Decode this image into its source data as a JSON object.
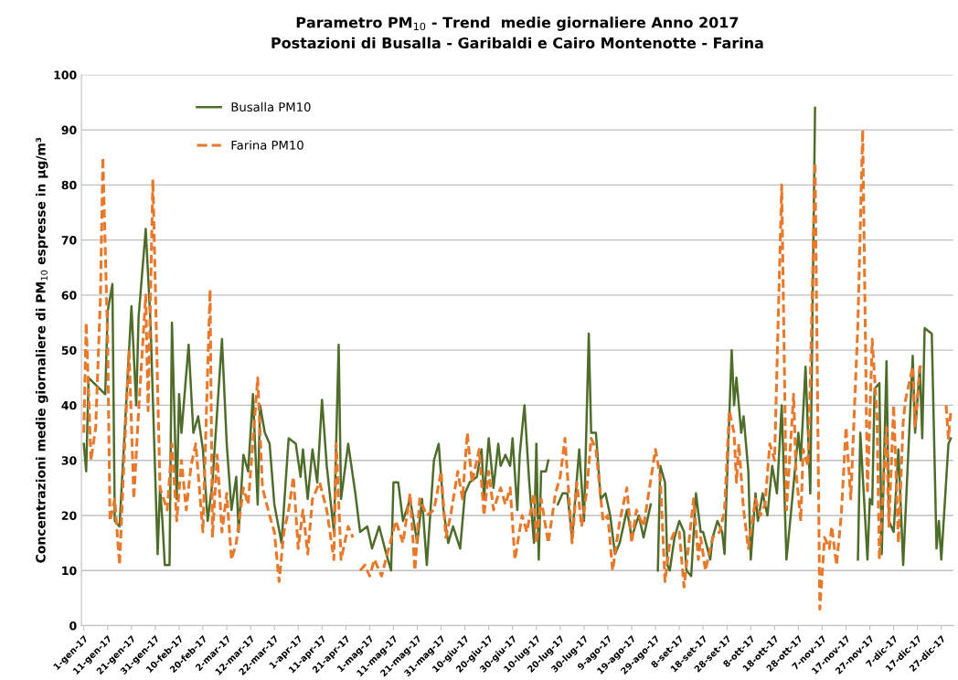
{
  "chart_data": {
    "type": "line",
    "title": "Parametro PM$_{10}$ - Trend  medie giornaliere Anno 2017",
    "subtitle": "Postazioni di Busalla - Garibaldi e Cairo Montenotte - Farina",
    "ylabel": "Concentrazioni medie giornaliere di PM$_{10}$ espresse in µg/m³",
    "xlim": [
      "2016-12-31",
      "2018-01-01"
    ],
    "ylim": [
      0,
      100
    ],
    "yticks": [
      0,
      10,
      20,
      30,
      40,
      50,
      60,
      70,
      80,
      90,
      100
    ],
    "xticks": [
      {
        "value": "2017-01-01",
        "label": "1-gen-17"
      },
      {
        "value": "2017-01-11",
        "label": "11-gen-17"
      },
      {
        "value": "2017-01-21",
        "label": "21-gen-17"
      },
      {
        "value": "2017-01-31",
        "label": "31-gen-17"
      },
      {
        "value": "2017-02-10",
        "label": "10-feb-17"
      },
      {
        "value": "2017-02-20",
        "label": "20-feb-17"
      },
      {
        "value": "2017-03-02",
        "label": "2-mar-17"
      },
      {
        "value": "2017-03-12",
        "label": "12-mar-17"
      },
      {
        "value": "2017-03-22",
        "label": "22-mar-17"
      },
      {
        "value": "2017-04-01",
        "label": "1-apr-17"
      },
      {
        "value": "2017-04-11",
        "label": "11-apr-17"
      },
      {
        "value": "2017-04-21",
        "label": "21-apr-17"
      },
      {
        "value": "2017-05-01",
        "label": "1-mag-17"
      },
      {
        "value": "2017-05-11",
        "label": "11-mag-17"
      },
      {
        "value": "2017-05-21",
        "label": "21-mag-17"
      },
      {
        "value": "2017-05-31",
        "label": "31-mag-17"
      },
      {
        "value": "2017-06-10",
        "label": "10-giu-17"
      },
      {
        "value": "2017-06-20",
        "label": "20-giu-17"
      },
      {
        "value": "2017-06-30",
        "label": "30-giu-17"
      },
      {
        "value": "2017-07-10",
        "label": "10-lug-17"
      },
      {
        "value": "2017-07-20",
        "label": "20-lug-17"
      },
      {
        "value": "2017-07-30",
        "label": "30-lug-17"
      },
      {
        "value": "2017-08-09",
        "label": "9-ago-17"
      },
      {
        "value": "2017-08-19",
        "label": "19-ago-17"
      },
      {
        "value": "2017-08-29",
        "label": "29-ago-17"
      },
      {
        "value": "2017-09-08",
        "label": "8-set-17"
      },
      {
        "value": "2017-09-18",
        "label": "18-set-17"
      },
      {
        "value": "2017-09-28",
        "label": "28-set-17"
      },
      {
        "value": "2017-10-08",
        "label": "8-ott-17"
      },
      {
        "value": "2017-10-18",
        "label": "18-ott-17"
      },
      {
        "value": "2017-10-28",
        "label": "28-ott-17"
      },
      {
        "value": "2017-11-07",
        "label": "7-nov-17"
      },
      {
        "value": "2017-11-17",
        "label": "17-nov-17"
      },
      {
        "value": "2017-11-27",
        "label": "27-nov-17"
      },
      {
        "value": "2017-12-07",
        "label": "7-dic-17"
      },
      {
        "value": "2017-12-17",
        "label": "17-dic-17"
      },
      {
        "value": "2017-12-27",
        "label": "27-dic-17"
      }
    ],
    "grid": "y",
    "legend": "top left",
    "marker": "none",
    "series": [
      {
        "name": "Busalla PM10",
        "color": "#4f6d2a",
        "line_style": "solid",
        "x": [
          "2017-01-01",
          "2017-01-02",
          "2017-01-03",
          "2017-01-10",
          "2017-01-11",
          "2017-01-13",
          "2017-01-14",
          "2017-01-16",
          "2017-01-21",
          "2017-01-23",
          "2017-01-24",
          "2017-01-27",
          "2017-01-29",
          "2017-02-01",
          "2017-02-02",
          "2017-02-03",
          "2017-02-04",
          "2017-02-06",
          "2017-02-07",
          "2017-02-09",
          "2017-02-10",
          "2017-02-11",
          "2017-02-14",
          "2017-02-16",
          "2017-02-18",
          "2017-02-20",
          "2017-02-22",
          "2017-02-24",
          "2017-02-28",
          "2017-03-02",
          "2017-03-04",
          "2017-03-06",
          "2017-03-07",
          "2017-03-09",
          "2017-03-11",
          "2017-03-13",
          "2017-03-15",
          "2017-03-16",
          "2017-03-18",
          "2017-03-20",
          "2017-03-22",
          "2017-03-25",
          "2017-03-28",
          "2017-03-31",
          "2017-04-02",
          "2017-04-03",
          "2017-04-05",
          "2017-04-07",
          "2017-04-09",
          "2017-04-11",
          "2017-04-13",
          "2017-04-16",
          "2017-04-18",
          "2017-04-19",
          "2017-04-22",
          "2017-04-25",
          "2017-04-27",
          "2017-04-30",
          "2017-05-02",
          "2017-05-05",
          "2017-05-08",
          "2017-05-10",
          "2017-05-11",
          "2017-05-13",
          "2017-05-15",
          "2017-05-18",
          "2017-05-21",
          "2017-05-23",
          "2017-05-25",
          "2017-05-28",
          "2017-05-30",
          "2017-06-01",
          "2017-06-03",
          "2017-06-05",
          "2017-06-08",
          "2017-06-10",
          "2017-06-12",
          "2017-06-15",
          "2017-06-17",
          "2017-06-18",
          "2017-06-20",
          "2017-06-22",
          "2017-06-24",
          "2017-06-25",
          "2017-06-27",
          "2017-06-29",
          "2017-06-30",
          "2017-07-02",
          "2017-07-03",
          "2017-07-05",
          "2017-07-07",
          "2017-07-09",
          "2017-07-10",
          "2017-07-11",
          "2017-07-12",
          "2017-07-14",
          "2017-07-15",
          "2017-07-17",
          "2017-07-19",
          "2017-07-21",
          "2017-07-23",
          "2017-07-25",
          "2017-07-28",
          "2017-07-30",
          "2017-08-01",
          "2017-08-02",
          "2017-08-04",
          "2017-08-06",
          "2017-08-08",
          "2017-08-10",
          "2017-08-12",
          "2017-08-14",
          "2017-08-17",
          "2017-08-19",
          "2017-08-22",
          "2017-08-24",
          "2017-08-27",
          "2017-08-29",
          "2017-08-30",
          "2017-08-31",
          "2017-09-02",
          "2017-09-03",
          "2017-09-04",
          "2017-09-06",
          "2017-09-08",
          "2017-09-10",
          "2017-09-11",
          "2017-09-13",
          "2017-09-15",
          "2017-09-17",
          "2017-09-18",
          "2017-09-21",
          "2017-09-22",
          "2017-09-24",
          "2017-09-26",
          "2017-09-27",
          "2017-09-28",
          "2017-09-30",
          "2017-10-01",
          "2017-10-02",
          "2017-10-04",
          "2017-10-05",
          "2017-10-07",
          "2017-10-08",
          "2017-10-10",
          "2017-10-11",
          "2017-10-13",
          "2017-10-15",
          "2017-10-17",
          "2017-10-19",
          "2017-10-21",
          "2017-10-23",
          "2017-10-25",
          "2017-10-28",
          "2017-10-29",
          "2017-10-31",
          "2017-11-02",
          "2017-11-04",
          "2017-11-05",
          "2017-11-22",
          "2017-11-23",
          "2017-11-26",
          "2017-11-27",
          "2017-11-28",
          "2017-11-29",
          "2017-12-01",
          "2017-12-02",
          "2017-12-04",
          "2017-12-05",
          "2017-12-07",
          "2017-12-09",
          "2017-12-11",
          "2017-12-13",
          "2017-12-15",
          "2017-12-16",
          "2017-12-18",
          "2017-12-19",
          "2017-12-20",
          "2017-12-23",
          "2017-12-25",
          "2017-12-26",
          "2017-12-27",
          "2017-12-30",
          "2017-12-31"
        ],
        "values": [
          33,
          28,
          45,
          42,
          57,
          62,
          19,
          18,
          58,
          40,
          56,
          72,
          55,
          13,
          25,
          19,
          11,
          11,
          55,
          23,
          42,
          35,
          51,
          35,
          38,
          32,
          19,
          26,
          52,
          33,
          21,
          27,
          17,
          31,
          28,
          42,
          22,
          40,
          35,
          33,
          22,
          15,
          34,
          33,
          27,
          32,
          23,
          32,
          26,
          41,
          29,
          17,
          51,
          23,
          33,
          24,
          17,
          18,
          14,
          18,
          13,
          10,
          26,
          26,
          19,
          23,
          15,
          23,
          11,
          30,
          33,
          21,
          15,
          18,
          14,
          24,
          26,
          27,
          32,
          23,
          34,
          25,
          33,
          29,
          31,
          29,
          34,
          21,
          31,
          40,
          26,
          15,
          33,
          12,
          28,
          28,
          30,
          null,
          22,
          24,
          24,
          16,
          32,
          19,
          53,
          35,
          35,
          23,
          24,
          20,
          13,
          15,
          21,
          16,
          20,
          16,
          22,
          null,
          10,
          29,
          26,
          11,
          10,
          16,
          19,
          17,
          10,
          9,
          24,
          17,
          17,
          12,
          16,
          19,
          17,
          13,
          26,
          50,
          40,
          45,
          35,
          38,
          28,
          12,
          24,
          19,
          24,
          20,
          29,
          24,
          40,
          12,
          21,
          35,
          30,
          47,
          24,
          94,
          null,
          12,
          35,
          12,
          23,
          22,
          43,
          44,
          13,
          48,
          19,
          17,
          32,
          11,
          30,
          49,
          35,
          47,
          34,
          54,
          53,
          14,
          19,
          12,
          33,
          34
        ]
      },
      {
        "name": "Farina PM10",
        "color": "#e8782a",
        "line_style": "dashed",
        "x": [
          "2017-01-01",
          "2017-01-02",
          "2017-01-04",
          "2017-01-06",
          "2017-01-08",
          "2017-01-09",
          "2017-01-11",
          "2017-01-12",
          "2017-01-14",
          "2017-01-16",
          "2017-01-18",
          "2017-01-20",
          "2017-01-22",
          "2017-01-24",
          "2017-01-27",
          "2017-01-28",
          "2017-01-30",
          "2017-02-01",
          "2017-02-02",
          "2017-02-05",
          "2017-02-07",
          "2017-02-09",
          "2017-02-11",
          "2017-02-13",
          "2017-02-15",
          "2017-02-17",
          "2017-02-20",
          "2017-02-23",
          "2017-02-24",
          "2017-02-26",
          "2017-02-28",
          "2017-03-02",
          "2017-03-04",
          "2017-03-06",
          "2017-03-09",
          "2017-03-11",
          "2017-03-15",
          "2017-03-17",
          "2017-03-20",
          "2017-03-22",
          "2017-03-24",
          "2017-03-26",
          "2017-03-28",
          "2017-03-30",
          "2017-04-01",
          "2017-04-03",
          "2017-04-05",
          "2017-04-07",
          "2017-04-10",
          "2017-04-13",
          "2017-04-16",
          "2017-04-17",
          "2017-04-19",
          "2017-04-22",
          "2017-04-24",
          "2017-04-25",
          "2017-04-27",
          "2017-04-29",
          "2017-05-01",
          "2017-05-03",
          "2017-05-06",
          "2017-05-09",
          "2017-05-12",
          "2017-05-15",
          "2017-05-18",
          "2017-05-20",
          "2017-05-22",
          "2017-05-25",
          "2017-05-28",
          "2017-05-31",
          "2017-06-02",
          "2017-06-04",
          "2017-06-07",
          "2017-06-09",
          "2017-06-11",
          "2017-06-13",
          "2017-06-16",
          "2017-06-18",
          "2017-06-20",
          "2017-06-22",
          "2017-06-25",
          "2017-06-27",
          "2017-06-29",
          "2017-07-01",
          "2017-07-04",
          "2017-07-06",
          "2017-07-09",
          "2017-07-10",
          "2017-07-12",
          "2017-07-15",
          "2017-07-18",
          "2017-07-20",
          "2017-07-22",
          "2017-07-25",
          "2017-07-27",
          "2017-07-29",
          "2017-07-31",
          "2017-08-02",
          "2017-08-04",
          "2017-08-07",
          "2017-08-09",
          "2017-08-11",
          "2017-08-14",
          "2017-08-17",
          "2017-08-19",
          "2017-08-21",
          "2017-08-24",
          "2017-08-29",
          "2017-08-31",
          "2017-09-02",
          "2017-09-04",
          "2017-09-06",
          "2017-09-08",
          "2017-09-10",
          "2017-09-12",
          "2017-09-14",
          "2017-09-16",
          "2017-09-17",
          "2017-09-19",
          "2017-09-22",
          "2017-09-25",
          "2017-09-27",
          "2017-09-29",
          "2017-10-01",
          "2017-10-02",
          "2017-10-03",
          "2017-10-05",
          "2017-10-07",
          "2017-10-10",
          "2017-10-12",
          "2017-10-14",
          "2017-10-16",
          "2017-10-18",
          "2017-10-21",
          "2017-10-23",
          "2017-10-26",
          "2017-10-27",
          "2017-10-29",
          "2017-10-30",
          "2017-11-01",
          "2017-11-02",
          "2017-11-04",
          "2017-11-06",
          "2017-11-08",
          "2017-11-10",
          "2017-11-11",
          "2017-11-13",
          "2017-11-15",
          "2017-11-17",
          "2017-11-19",
          "2017-11-22",
          "2017-11-24",
          "2017-11-26",
          "2017-11-28",
          "2017-11-30",
          "2017-12-01",
          "2017-12-04",
          "2017-12-05",
          "2017-12-07",
          "2017-12-09",
          "2017-12-11",
          "2017-12-12",
          "2017-12-15",
          "2017-12-16",
          "2017-12-18",
          "2017-12-20",
          "2017-12-24",
          "2017-12-29",
          "2017-12-30",
          "2017-12-31"
        ],
        "values": [
          35,
          55,
          30,
          36,
          60,
          85,
          52,
          19,
          23,
          11,
          31,
          50,
          23,
          39,
          60,
          39,
          81,
          43,
          25,
          21,
          33,
          19,
          30,
          21,
          29,
          33,
          17,
          61,
          16,
          31,
          17,
          24,
          12,
          15,
          25,
          22,
          45,
          25,
          20,
          17,
          8,
          17,
          21,
          27,
          14,
          21,
          13,
          23,
          26,
          21,
          12,
          33,
          12,
          18,
          16,
          null,
          10,
          11,
          9,
          12,
          9,
          14,
          19,
          15,
          24,
          10,
          23,
          20,
          21,
          28,
          16,
          20,
          28,
          23,
          35,
          26,
          32,
          20,
          28,
          21,
          25,
          22,
          25,
          12,
          20,
          17,
          24,
          15,
          23,
          15,
          24,
          27,
          34,
          15,
          26,
          18,
          24,
          34,
          32,
          19,
          20,
          10,
          19,
          25,
          15,
          21,
          18,
          32,
          27,
          8,
          15,
          17,
          17,
          7,
          15,
          23,
          12,
          16,
          10,
          16,
          17,
          21,
          39,
          35,
          26,
          33,
          21,
          14,
          23,
          20,
          22,
          33,
          30,
          80,
          21,
          42,
          28,
          19,
          32,
          29,
          44,
          84,
          3,
          16,
          14,
          18,
          11,
          20,
          36,
          23,
          55,
          90,
          24,
          52,
          38,
          12,
          36,
          18,
          40,
          15,
          37,
          41,
          47,
          36,
          47,
          47,
          null,
          40,
          34,
          39
        ]
      }
    ]
  }
}
